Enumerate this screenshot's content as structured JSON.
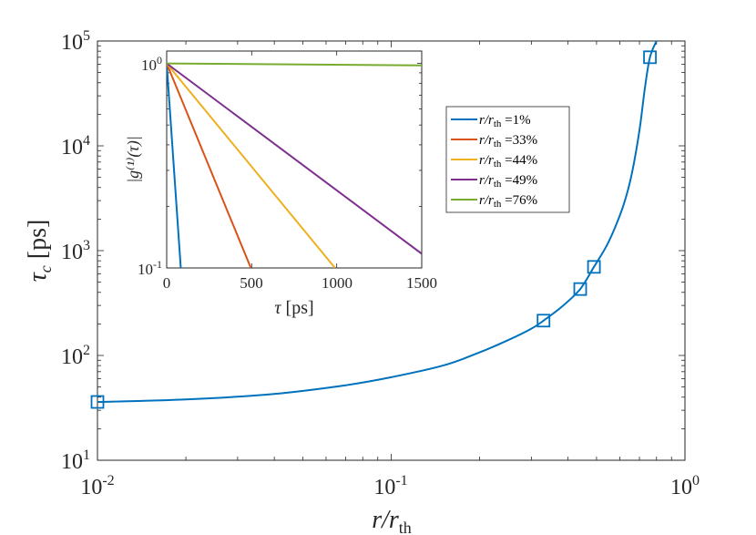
{
  "chart_data": [
    {
      "type": "line",
      "role": "main",
      "xscale": "log",
      "yscale": "log",
      "xlim": [
        0.01,
        1
      ],
      "ylim": [
        10,
        100000
      ],
      "xlabel": {
        "base": "r/r",
        "sub": "th"
      },
      "ylabel": {
        "base": "τ",
        "sub": "c",
        "unit": " [ps]"
      },
      "x_ticks": [
        {
          "mantissa": "10",
          "exp": "-2"
        },
        {
          "mantissa": "10",
          "exp": "-1"
        },
        {
          "mantissa": "10",
          "exp": "0"
        }
      ],
      "y_ticks": [
        {
          "mantissa": "10",
          "exp": "1"
        },
        {
          "mantissa": "10",
          "exp": "2"
        },
        {
          "mantissa": "10",
          "exp": "3"
        },
        {
          "mantissa": "10",
          "exp": "4"
        },
        {
          "mantissa": "10",
          "exp": "5"
        }
      ],
      "curve": {
        "color": "#0072BD",
        "x": [
          0.01,
          0.02,
          0.04,
          0.07,
          0.1,
          0.15,
          0.2,
          0.25,
          0.3,
          0.33,
          0.38,
          0.44,
          0.49,
          0.54,
          0.58,
          0.62,
          0.66,
          0.7,
          0.73,
          0.76,
          0.8
        ],
        "y": [
          36,
          38,
          43,
          52,
          62,
          80,
          107,
          140,
          180,
          215,
          290,
          430,
          700,
          1100,
          1700,
          2800,
          5500,
          14000,
          35000,
          70000,
          100000
        ]
      },
      "markers": {
        "color": "#0072BD",
        "x": [
          0.01,
          0.33,
          0.44,
          0.49,
          0.76
        ],
        "y": [
          36,
          215,
          430,
          700,
          70000
        ]
      }
    },
    {
      "type": "line",
      "role": "inset",
      "yscale": "log",
      "xlim": [
        0,
        1500
      ],
      "ylim": [
        0.1,
        1.15
      ],
      "xlabel": {
        "base": "τ",
        "unit": " [ps]"
      },
      "ylabel": "|g⁽¹⁾(τ)|",
      "x_ticks": [
        "0",
        "500",
        "1000",
        "1500"
      ],
      "y_ticks": [
        {
          "value": 1,
          "mantissa": "10",
          "exp": "0"
        },
        {
          "value": 0.1,
          "mantissa": "10",
          "exp": "-1"
        }
      ],
      "series": [
        {
          "name": "r/r_th = 1%",
          "tau_c": 36,
          "color": "#0072BD",
          "legend": {
            "base": "r/r",
            "sub": "th",
            "value": " =1%"
          }
        },
        {
          "name": "r/r_th = 33%",
          "tau_c": 215,
          "color": "#D95319",
          "legend": {
            "base": "r/r",
            "sub": "th",
            "value": " =33%"
          }
        },
        {
          "name": "r/r_th = 44%",
          "tau_c": 430,
          "color": "#EDB120",
          "legend": {
            "base": "r/r",
            "sub": "th",
            "value": " =44%"
          }
        },
        {
          "name": "r/r_th = 49%",
          "tau_c": 700,
          "color": "#7E2F8E",
          "legend": {
            "base": "r/r",
            "sub": "th",
            "value": " =49%"
          }
        },
        {
          "name": "r/r_th = 76%",
          "tau_c": 70000,
          "color": "#77AC30",
          "legend": {
            "base": "r/r",
            "sub": "th",
            "value": " =76%"
          }
        }
      ]
    }
  ]
}
